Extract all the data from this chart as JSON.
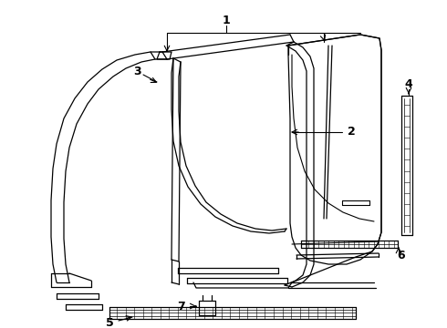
{
  "bg_color": "#ffffff",
  "line_color": "#000000",
  "fig_width": 4.9,
  "fig_height": 3.6,
  "dpi": 100
}
